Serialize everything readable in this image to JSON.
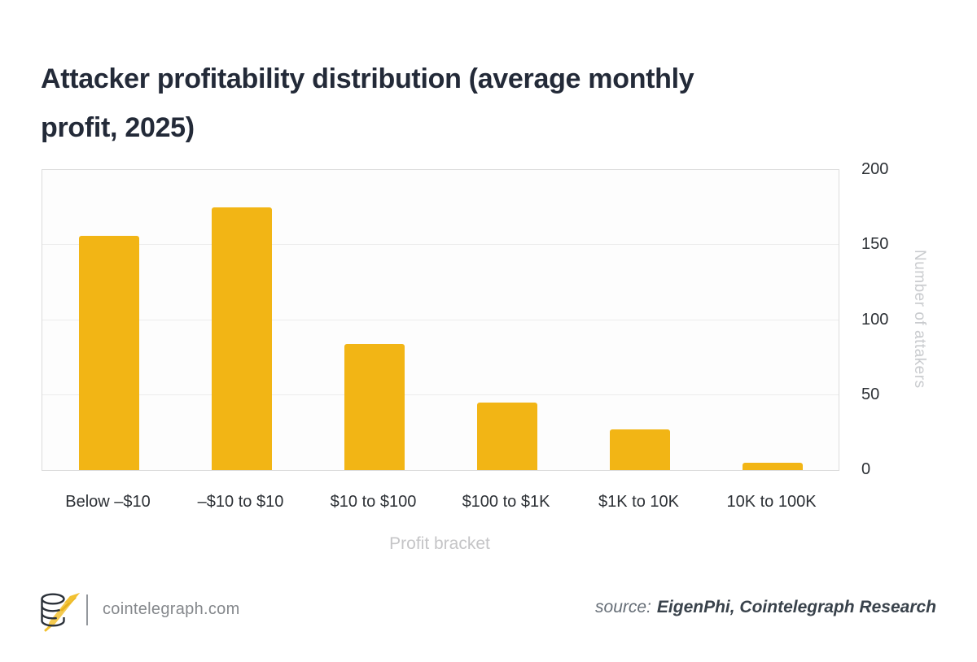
{
  "title": {
    "line1": "Attacker profitability distribution (average monthly",
    "line2": "profit, 2025)"
  },
  "chart_data": {
    "type": "bar",
    "title": "Attacker profitability distribution (average monthly profit, 2025)",
    "categories": [
      "Below –$10",
      "–$10 to $10",
      "$10 to $100",
      "$100 to $1K",
      "$1K to 10K",
      "10K to 100K"
    ],
    "values": [
      156,
      175,
      84,
      45,
      27,
      5
    ],
    "xlabel": "Profit bracket",
    "ylabel": "Number of attakers",
    "ylim": [
      0,
      200
    ],
    "yticks": [
      0,
      50,
      100,
      150,
      200
    ],
    "grid": "horizontal",
    "legend": "none",
    "bar_color": "#F2B515"
  },
  "colors": {
    "bar": "#F2B515",
    "title_text": "#232a38",
    "tick_text": "#2d3136",
    "muted_text": "#c5c5c7",
    "gridline": "#ececec",
    "plot_border": "#dcdcdc"
  },
  "footer": {
    "logo_icon": "cointelegraph-coins-rocket-logo",
    "site": "cointelegraph.com",
    "source_label": "source:",
    "source_value": "EigenPhi, Cointelegraph Research"
  }
}
